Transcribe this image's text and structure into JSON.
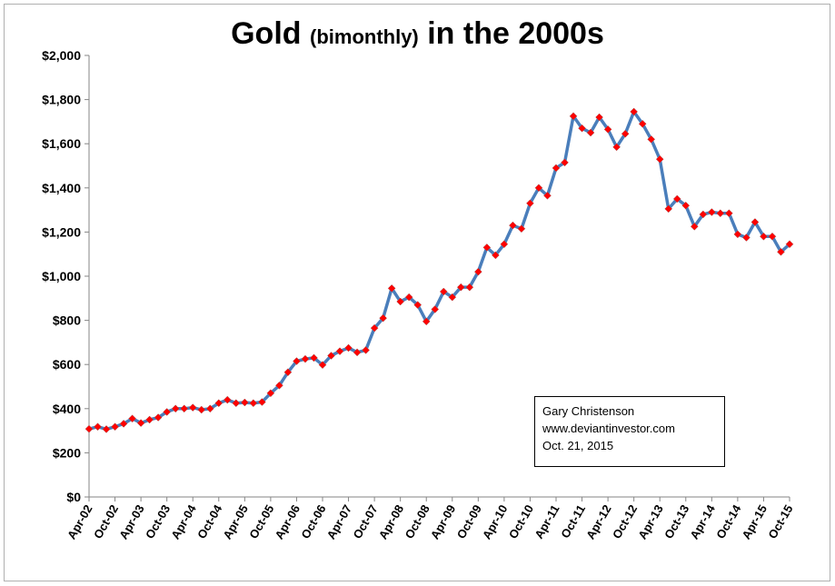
{
  "chart_data": {
    "type": "line",
    "title_main": "Gold",
    "title_sub": "(bimonthly)",
    "title_end": "in the 2000s",
    "xlabel": "",
    "ylabel": "",
    "ylim": [
      0,
      2000
    ],
    "yticks": [
      0,
      200,
      400,
      600,
      800,
      1000,
      1200,
      1400,
      1600,
      1800,
      2000
    ],
    "ytick_labels": [
      "$0",
      "$200",
      "$400",
      "$600",
      "$800",
      "$1,000",
      "$1,200",
      "$1,400",
      "$1,600",
      "$1,800",
      "$2,000"
    ],
    "xtick_labels": [
      "Apr-02",
      "Oct-02",
      "Apr-03",
      "Oct-03",
      "Apr-04",
      "Oct-04",
      "Apr-05",
      "Oct-05",
      "Apr-06",
      "Oct-06",
      "Apr-07",
      "Oct-07",
      "Apr-08",
      "Oct-08",
      "Apr-09",
      "Oct-09",
      "Apr-10",
      "Oct-10",
      "Apr-11",
      "Oct-11",
      "Apr-12",
      "Oct-12",
      "Apr-13",
      "Oct-13",
      "Apr-14",
      "Oct-14",
      "Apr-15",
      "Oct-15"
    ],
    "grid": false,
    "series": [
      {
        "name": "Gold",
        "line_color": "#4a7ebb",
        "marker_color": "#ff0000",
        "values": [
          308,
          318,
          307,
          318,
          332,
          355,
          335,
          350,
          360,
          385,
          400,
          400,
          405,
          395,
          400,
          425,
          440,
          425,
          428,
          425,
          430,
          470,
          505,
          565,
          615,
          625,
          630,
          598,
          640,
          660,
          675,
          655,
          665,
          765,
          810,
          945,
          885,
          905,
          870,
          795,
          850,
          930,
          905,
          950,
          950,
          1020,
          1130,
          1095,
          1145,
          1230,
          1215,
          1330,
          1400,
          1365,
          1490,
          1515,
          1725,
          1670,
          1650,
          1720,
          1665,
          1585,
          1645,
          1745,
          1690,
          1620,
          1530,
          1305,
          1350,
          1320,
          1225,
          1280,
          1290,
          1285,
          1285,
          1190,
          1175,
          1245,
          1180,
          1180,
          1110,
          1145
        ]
      }
    ],
    "annotation": [
      "Gary Christenson",
      "www.deviantinvestor.com",
      "Oct. 21, 2015"
    ]
  }
}
